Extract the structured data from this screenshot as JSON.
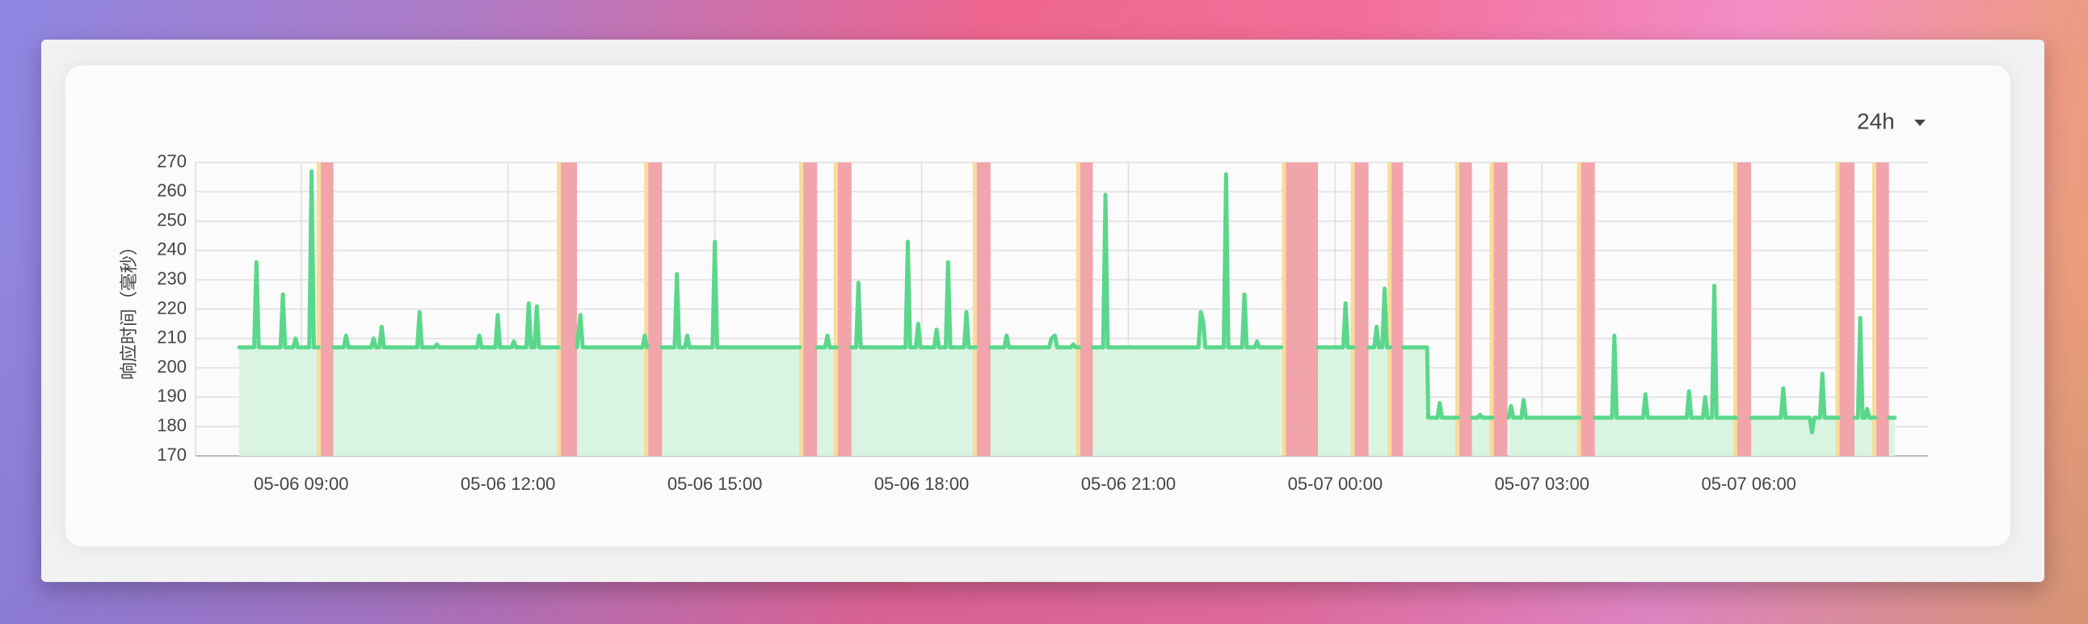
{
  "range_selector": "24h",
  "chart_data": {
    "type": "line",
    "y_label": "响应时间（毫秒）",
    "color": "#5ad78b",
    "area_color": "#d9f5e2",
    "band_color": "#f1a5ab",
    "band_edge_color": "#f8dc9b",
    "grid": true,
    "xlim": [
      "05-06 07:28",
      "05-07 08:36"
    ],
    "xticks": [
      "05-06 09:00",
      "05-06 12:00",
      "05-06 15:00",
      "05-06 18:00",
      "05-06 21:00",
      "05-07 00:00",
      "05-07 03:00",
      "05-07 06:00"
    ],
    "ylim": [
      170,
      270
    ],
    "yticks": [
      170,
      180,
      190,
      200,
      210,
      220,
      230,
      240,
      250,
      260,
      270
    ],
    "outages": [
      [
        "05-06 09:17",
        "05-06 09:28"
      ],
      [
        "05-06 12:46",
        "05-06 13:00"
      ],
      [
        "05-06 14:02",
        "05-06 14:14"
      ],
      [
        "05-06 16:17",
        "05-06 16:29"
      ],
      [
        "05-06 16:47",
        "05-06 16:59"
      ],
      [
        "05-06 18:48",
        "05-06 19:00"
      ],
      [
        "05-06 20:18",
        "05-06 20:29"
      ],
      [
        "05-06 23:17",
        "05-06 23:45"
      ],
      [
        "05-07 00:17",
        "05-07 00:29"
      ],
      [
        "05-07 00:49",
        "05-07 00:59"
      ],
      [
        "05-07 01:48",
        "05-07 01:59"
      ],
      [
        "05-07 02:18",
        "05-07 02:30"
      ],
      [
        "05-07 03:34",
        "05-07 03:46"
      ],
      [
        "05-07 05:50",
        "05-07 06:02"
      ],
      [
        "05-07 07:19",
        "05-07 07:32"
      ],
      [
        "05-07 07:51",
        "05-07 08:02"
      ]
    ],
    "x": [
      "05-06 08:06",
      "05-06 08:19",
      "05-06 08:21",
      "05-06 08:23",
      "05-06 08:42",
      "05-06 08:44",
      "05-06 08:46",
      "05-06 08:53",
      "05-06 08:55",
      "05-06 08:57",
      "05-06 09:07",
      "05-06 09:09",
      "05-06 09:11",
      "05-06 09:15",
      "05-06 09:22",
      "05-06 09:28",
      "05-06 09:37",
      "05-06 09:39",
      "05-06 09:41",
      "05-06 10:01",
      "05-06 10:03",
      "05-06 10:05",
      "05-06 10:08",
      "05-06 10:10",
      "05-06 10:12",
      "05-06 10:41",
      "05-06 10:43",
      "05-06 10:45",
      "05-06 10:56",
      "05-06 10:58",
      "05-06 11:00",
      "05-06 11:33",
      "05-06 11:35",
      "05-06 11:37",
      "05-06 11:49",
      "05-06 11:51",
      "05-06 11:53",
      "05-06 12:03",
      "05-06 12:05",
      "05-06 12:07",
      "05-06 12:16",
      "05-06 12:18",
      "05-06 12:20",
      "05-06 12:23",
      "05-06 12:25",
      "05-06 12:27",
      "05-06 12:44",
      "05-06 12:52",
      "05-06 13:00",
      "05-06 13:03",
      "05-06 13:05",
      "05-06 13:57",
      "05-06 13:59",
      "05-06 14:01",
      "05-06 14:08",
      "05-06 14:14",
      "05-06 14:25",
      "05-06 14:27",
      "05-06 14:29",
      "05-06 14:34",
      "05-06 14:36",
      "05-06 14:38",
      "05-06 14:58",
      "05-06 15:00",
      "05-06 15:02",
      "05-06 16:14",
      "05-06 16:22",
      "05-06 16:29",
      "05-06 16:36",
      "05-06 16:38",
      "05-06 16:40",
      "05-06 16:46",
      "05-06 16:52",
      "05-06 16:59",
      "05-06 17:03",
      "05-06 17:05",
      "05-06 17:07",
      "05-06 17:46",
      "05-06 17:48",
      "05-06 17:50",
      "05-06 17:55",
      "05-06 17:57",
      "05-06 17:59",
      "05-06 18:11",
      "05-06 18:13",
      "05-06 18:15",
      "05-06 18:21",
      "05-06 18:23",
      "05-06 18:25",
      "05-06 18:37",
      "05-06 18:39",
      "05-06 18:41",
      "05-06 18:47",
      "05-06 18:54",
      "05-06 19:00",
      "05-06 19:12",
      "05-06 19:14",
      "05-06 19:16",
      "05-06 19:51",
      "05-06 19:53",
      "05-06 19:56",
      "05-06 19:58",
      "05-06 20:10",
      "05-06 20:12",
      "05-06 20:14",
      "05-06 20:17",
      "05-06 20:23",
      "05-06 20:29",
      "05-06 20:38",
      "05-06 20:40",
      "05-06 20:42",
      "05-06 22:01",
      "05-06 22:03",
      "05-06 22:05",
      "05-06 22:07",
      "05-06 22:23",
      "05-06 22:25",
      "05-06 22:27",
      "05-06 22:39",
      "05-06 22:41",
      "05-06 22:43",
      "05-06 22:50",
      "05-06 22:52",
      "05-06 22:54",
      "05-06 23:13",
      "05-06 23:30",
      "05-06 23:45",
      "05-07 00:07",
      "05-07 00:09",
      "05-07 00:11",
      "05-07 00:16",
      "05-07 00:23",
      "05-07 00:29",
      "05-07 00:34",
      "05-07 00:36",
      "05-07 00:38",
      "05-07 00:41",
      "05-07 00:43",
      "05-07 00:45",
      "05-07 00:48",
      "05-07 00:54",
      "05-07 00:59",
      "05-07 01:20",
      "05-07 01:21",
      "05-07 01:29",
      "05-07 01:31",
      "05-07 01:33",
      "05-07 01:47",
      "05-07 01:53",
      "05-07 01:59",
      "05-07 02:04",
      "05-07 02:06",
      "05-07 02:08",
      "05-07 02:17",
      "05-07 02:24",
      "05-07 02:31",
      "05-07 02:33",
      "05-07 02:35",
      "05-07 02:42",
      "05-07 02:44",
      "05-07 02:46",
      "05-07 03:33",
      "05-07 03:40",
      "05-07 03:46",
      "05-07 04:01",
      "05-07 04:03",
      "05-07 04:05",
      "05-07 04:28",
      "05-07 04:30",
      "05-07 04:32",
      "05-07 05:06",
      "05-07 05:08",
      "05-07 05:10",
      "05-07 05:20",
      "05-07 05:22",
      "05-07 05:24",
      "05-07 05:28",
      "05-07 05:30",
      "05-07 05:32",
      "05-07 05:49",
      "05-07 05:56",
      "05-07 06:02",
      "05-07 06:28",
      "05-07 06:30",
      "05-07 06:32",
      "05-07 06:53",
      "05-07 06:55",
      "05-07 06:57",
      "05-07 07:02",
      "05-07 07:04",
      "05-07 07:06",
      "05-07 07:18",
      "05-07 07:25",
      "05-07 07:32",
      "05-07 07:35",
      "05-07 07:37",
      "05-07 07:39",
      "05-07 07:41",
      "05-07 07:43",
      "05-07 07:45",
      "05-07 07:50",
      "05-07 07:56",
      "05-07 08:02",
      "05-07 08:07"
    ],
    "values": [
      207,
      207,
      236,
      207,
      207,
      225,
      207,
      207,
      210,
      207,
      207,
      267,
      207,
      207,
      null,
      207,
      207,
      211,
      207,
      207,
      210,
      207,
      207,
      214,
      207,
      207,
      219,
      207,
      207,
      208,
      207,
      207,
      211,
      207,
      207,
      218,
      207,
      207,
      209,
      207,
      207,
      222,
      207,
      207,
      221,
      207,
      207,
      null,
      207,
      218,
      207,
      207,
      211,
      207,
      null,
      207,
      207,
      232,
      207,
      207,
      211,
      207,
      207,
      243,
      207,
      207,
      null,
      207,
      207,
      211,
      207,
      207,
      null,
      207,
      207,
      229,
      207,
      207,
      243,
      207,
      207,
      215,
      207,
      207,
      213,
      207,
      207,
      236,
      207,
      207,
      219,
      207,
      207,
      null,
      207,
      207,
      211,
      207,
      207,
      210,
      211,
      207,
      207,
      208,
      207,
      207,
      null,
      207,
      207,
      259,
      207,
      207,
      219,
      216,
      207,
      207,
      266,
      207,
      207,
      225,
      207,
      207,
      209,
      207,
      207,
      null,
      207,
      207,
      222,
      207,
      207,
      null,
      207,
      207,
      214,
      207,
      207,
      227,
      207,
      207,
      null,
      207,
      207,
      183,
      183,
      188,
      183,
      183,
      null,
      183,
      183,
      184,
      183,
      183,
      null,
      183,
      187,
      183,
      183,
      189,
      183,
      183,
      null,
      183,
      183,
      211,
      183,
      183,
      191,
      183,
      183,
      192,
      183,
      183,
      190,
      183,
      183,
      228,
      183,
      183,
      null,
      183,
      183,
      193,
      183,
      183,
      178,
      183,
      183,
      198,
      183,
      183,
      null,
      183,
      183,
      217,
      183,
      183,
      186,
      183,
      183,
      null,
      183,
      183
    ]
  }
}
